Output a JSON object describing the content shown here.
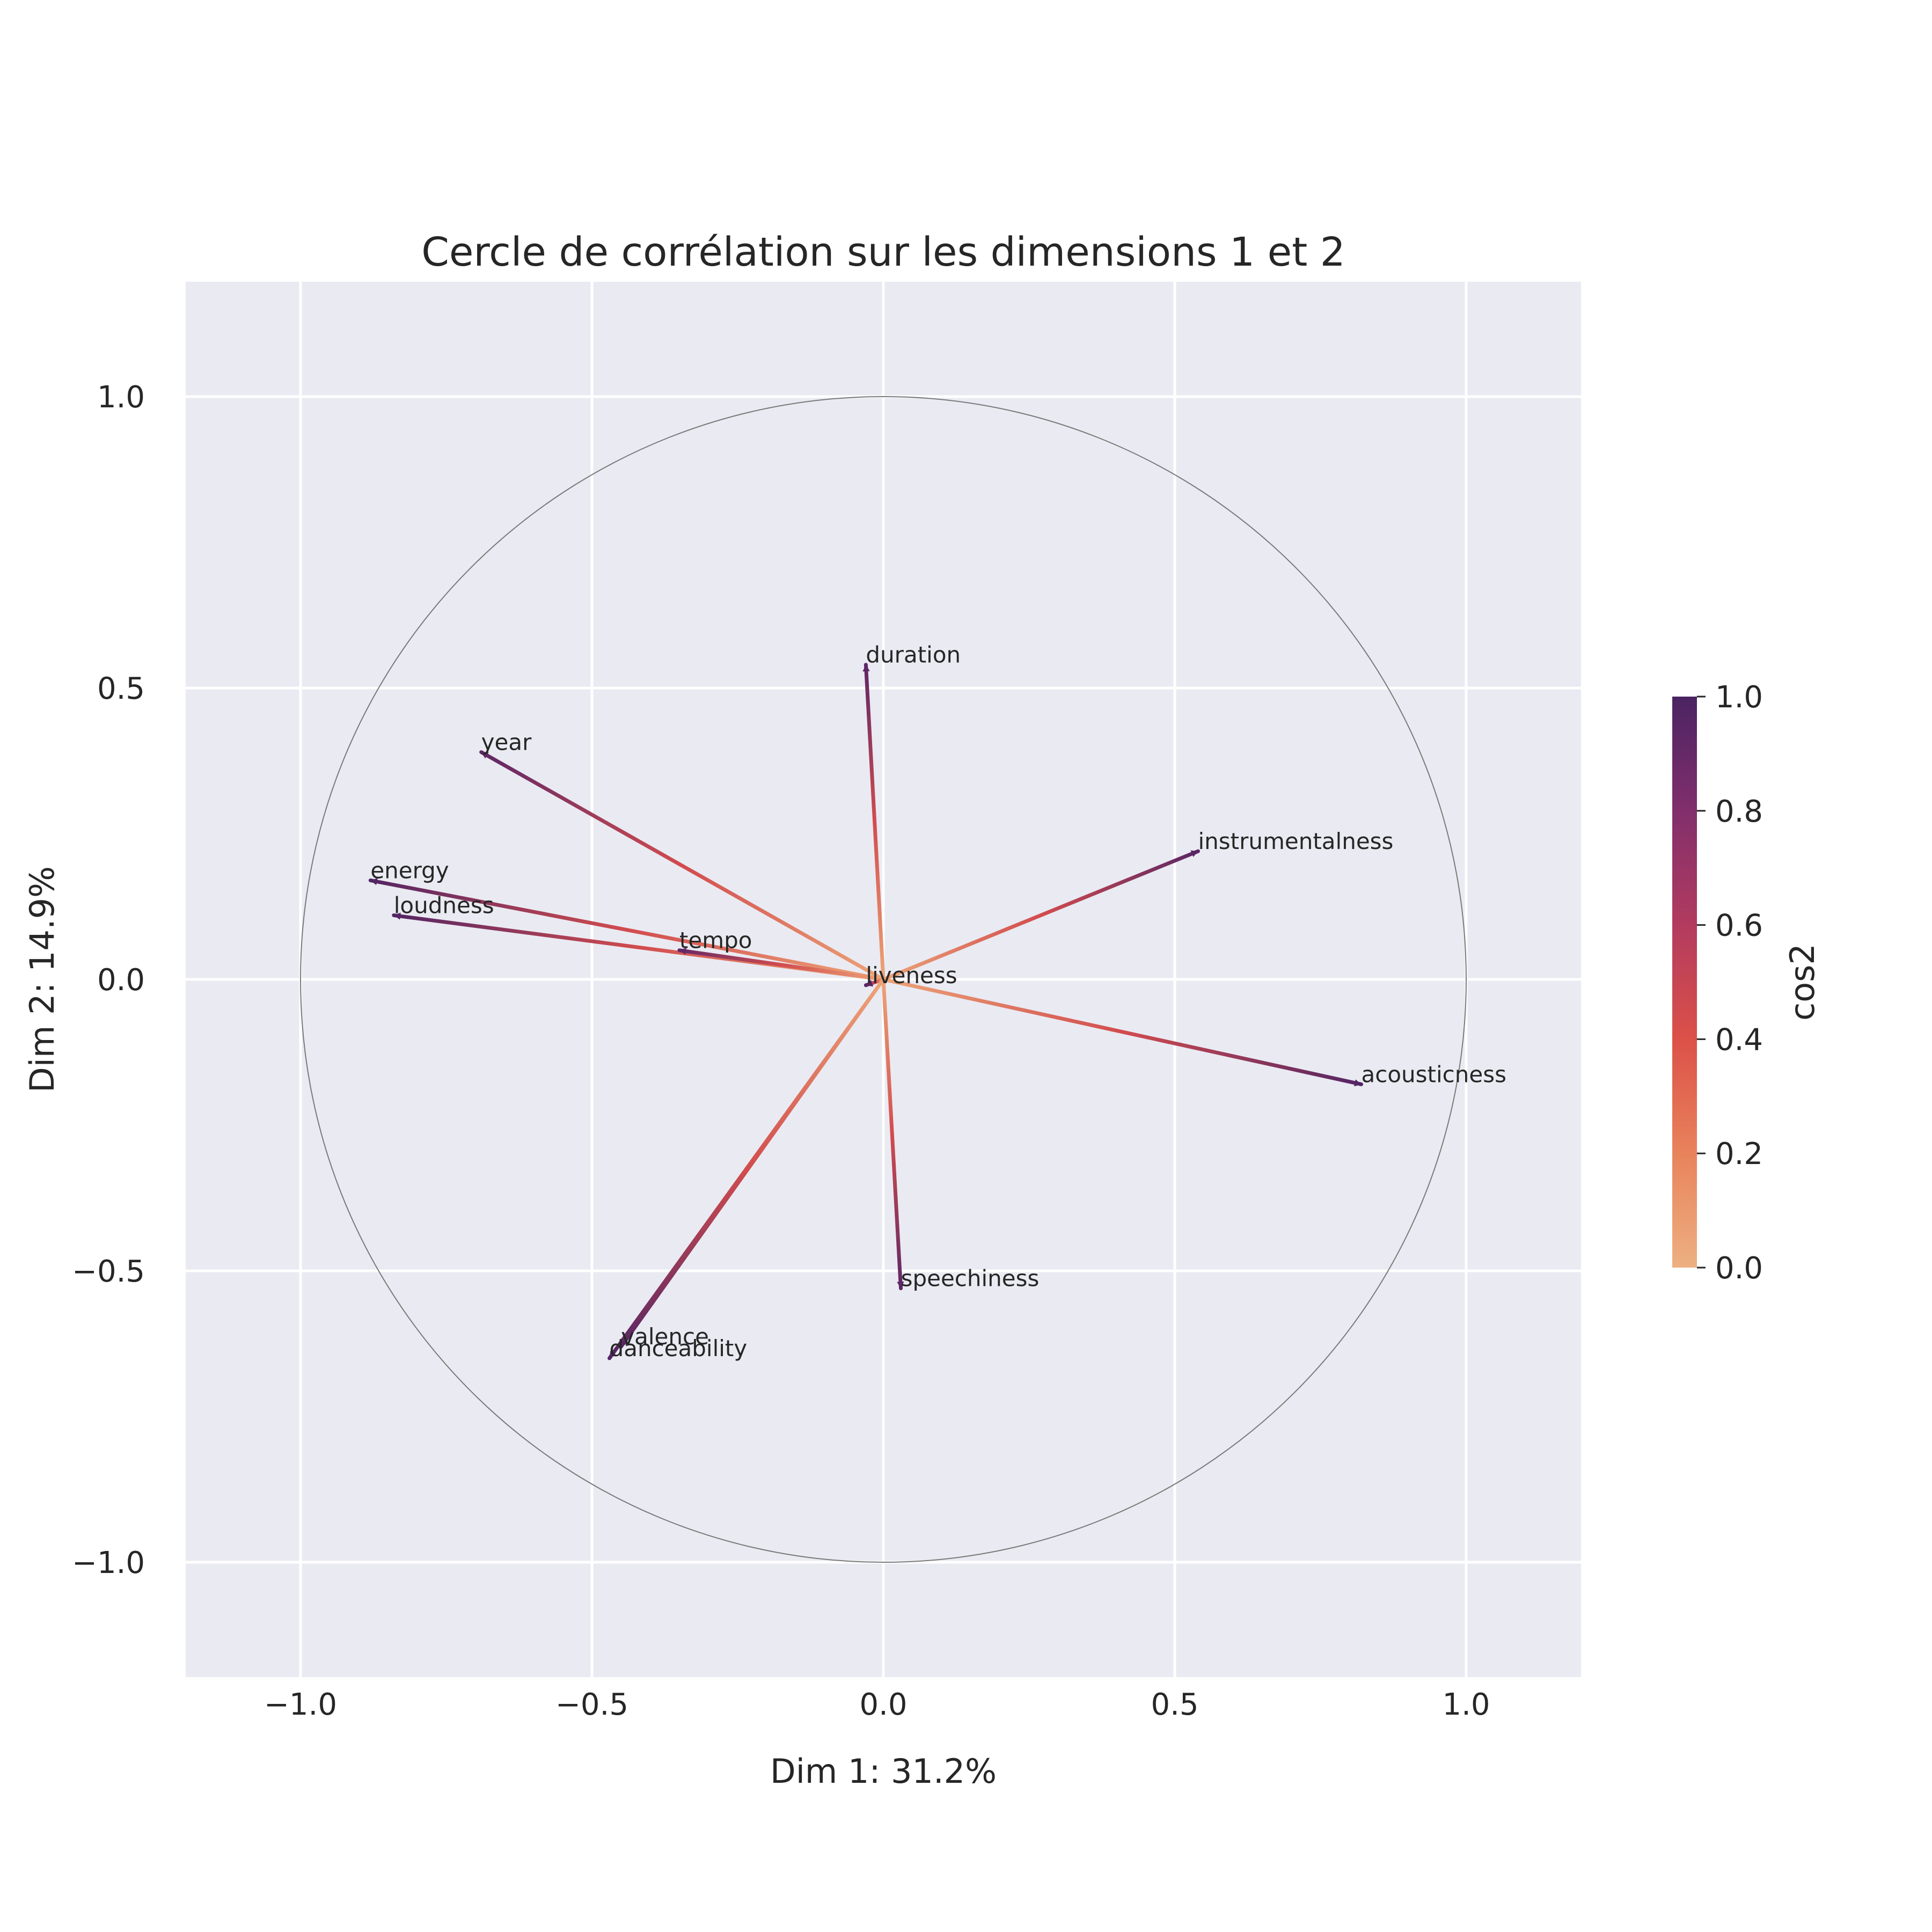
{
  "chart_data": {
    "type": "scatter",
    "subtype": "correlation-circle",
    "title": "Cercle de corrélation sur les dimensions 1 et 2",
    "xlabel": "Dim 1: 31.2%",
    "ylabel": "Dim 2: 14.9%",
    "xlim": [
      -1.2,
      1.2
    ],
    "ylim": [
      -1.2,
      1.2
    ],
    "xticks": [
      -1.0,
      -0.5,
      0.0,
      0.5,
      1.0
    ],
    "yticks": [
      -1.0,
      -0.5,
      0.0,
      0.5,
      1.0
    ],
    "xtick_labels": [
      "−1.0",
      "−0.5",
      "0.0",
      "0.5",
      "1.0"
    ],
    "ytick_labels": [
      "−1.0",
      "−0.5",
      "0.0",
      "0.5",
      "1.0"
    ],
    "grid": true,
    "unit_circle": true,
    "colorbar": {
      "label": "cos2",
      "range": [
        0.0,
        1.0
      ],
      "ticks": [
        0.0,
        0.2,
        0.4,
        0.6,
        0.8,
        1.0
      ],
      "tick_labels": [
        "0.0",
        "0.2",
        "0.4",
        "0.6",
        "0.8",
        "1.0"
      ],
      "colormap": "flare",
      "colors": [
        "#edb081",
        "#e8835c",
        "#dc5148",
        "#b23b5f",
        "#812f6c",
        "#4b2362"
      ]
    },
    "variables": [
      {
        "name": "duration",
        "x": -0.03,
        "y": 0.54,
        "cos2": 0.93
      },
      {
        "name": "year",
        "x": -0.69,
        "y": 0.39,
        "cos2": 0.93
      },
      {
        "name": "energy",
        "x": -0.88,
        "y": 0.17,
        "cos2": 0.97
      },
      {
        "name": "loudness",
        "x": -0.84,
        "y": 0.11,
        "cos2": 0.97
      },
      {
        "name": "tempo",
        "x": -0.35,
        "y": 0.05,
        "cos2": 0.9
      },
      {
        "name": "liveness",
        "x": -0.03,
        "y": -0.01,
        "cos2": 0.95
      },
      {
        "name": "instrumentalness",
        "x": 0.54,
        "y": 0.22,
        "cos2": 0.95
      },
      {
        "name": "acousticness",
        "x": 0.82,
        "y": -0.18,
        "cos2": 0.97
      },
      {
        "name": "speechiness",
        "x": 0.03,
        "y": -0.53,
        "cos2": 0.93
      },
      {
        "name": "valence",
        "x": -0.45,
        "y": -0.63,
        "cos2": 0.95
      },
      {
        "name": "danceability",
        "x": -0.47,
        "y": -0.65,
        "cos2": 0.97
      }
    ]
  }
}
